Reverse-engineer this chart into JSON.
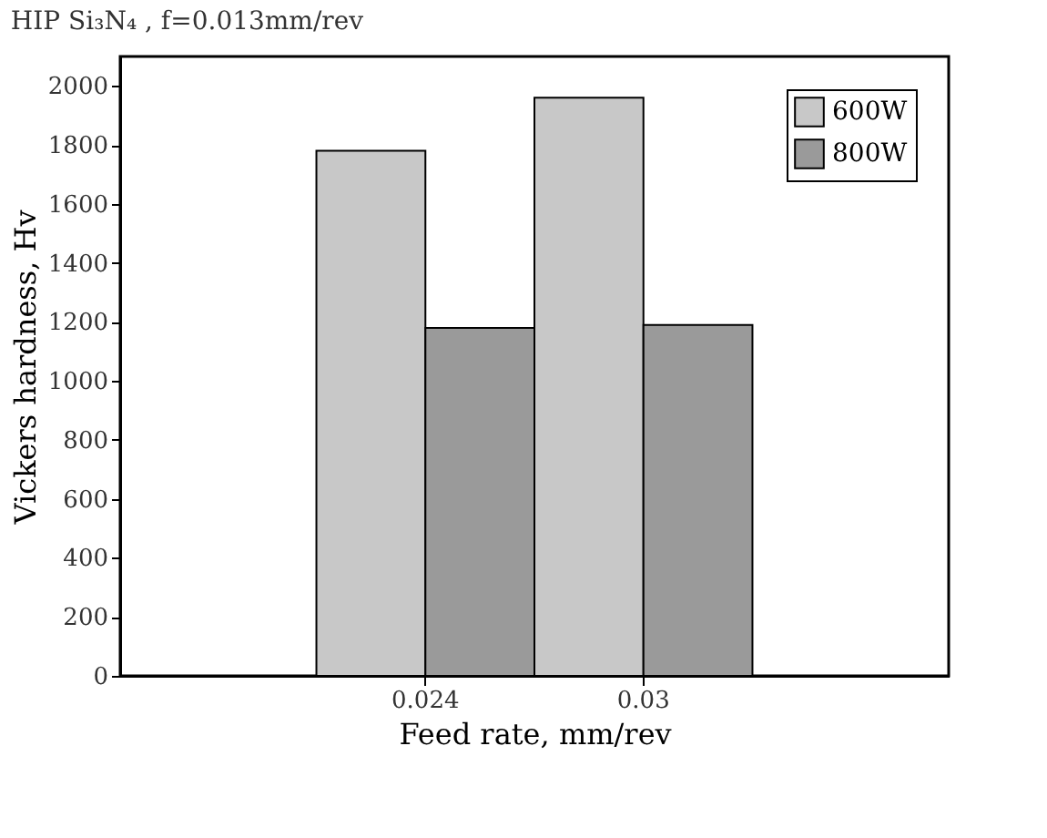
{
  "chart_data": {
    "type": "bar",
    "title": "HIP  Si₃N₄ , f=0.013mm/rev",
    "xlabel": "Feed rate, mm/rev",
    "ylabel": "Vickers hardness, Hv",
    "categories": [
      "0.024",
      "0.03"
    ],
    "series": [
      {
        "name": "600W",
        "color": "#c8c8c8",
        "values": [
          1780,
          1960
        ]
      },
      {
        "name": "800W",
        "color": "#9a9a9a",
        "values": [
          1180,
          1190
        ]
      }
    ],
    "ylim": [
      0,
      2100
    ],
    "yticks": [
      0,
      200,
      400,
      600,
      800,
      1000,
      1200,
      1400,
      1600,
      1800,
      2000
    ],
    "grid": false,
    "legend": "top right"
  }
}
